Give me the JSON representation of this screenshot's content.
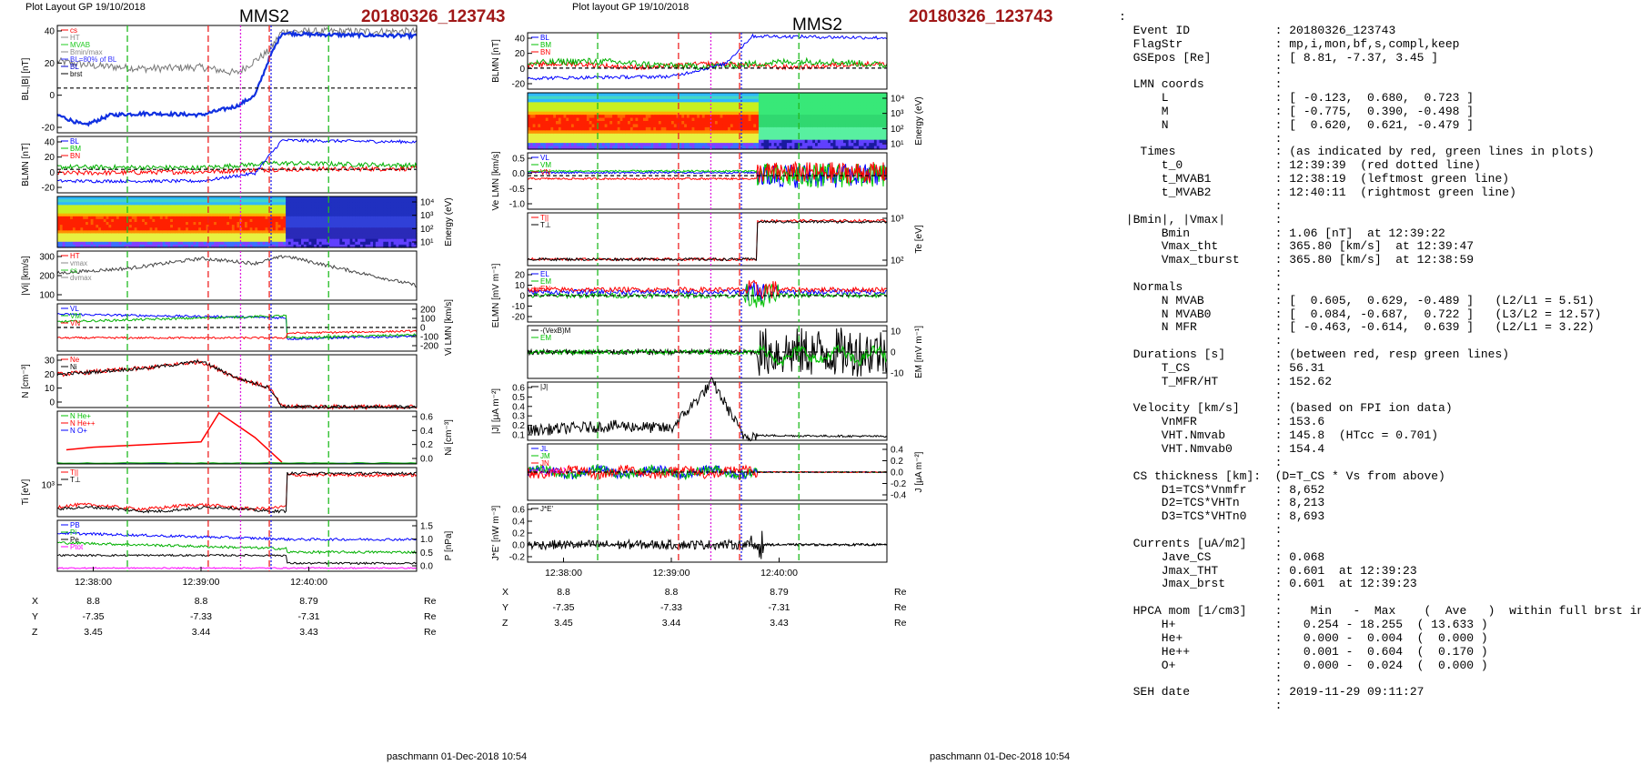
{
  "left": {
    "plot_layout": "Plot Layout GP 19/10/2018",
    "spacecraft": "MMS2",
    "event": "20180326_123743",
    "footer": "paschmann 01-Dec-2018 10:54",
    "time_ticks": [
      "12:38:00",
      "12:39:00",
      "12:40:00"
    ],
    "coords": [
      {
        "axis": "X",
        "values": [
          "8.8",
          "8.8",
          "8.79"
        ],
        "unit": "Re"
      },
      {
        "axis": "Y",
        "values": [
          "-7.35",
          "-7.33",
          "-7.31"
        ],
        "unit": "Re"
      },
      {
        "axis": "Z",
        "values": [
          "3.45",
          "3.44",
          "3.43"
        ],
        "unit": "Re"
      }
    ],
    "panels": [
      {
        "ylabel": "BL,|B| [nT]",
        "ticks": [
          "40",
          "20",
          "0",
          "-20"
        ],
        "legend": [
          "cs",
          "HT",
          "MVAB",
          "Bmin/max",
          "BL=80% of BL",
          "BL",
          "brst"
        ]
      },
      {
        "ylabel": "BLMN [nT]",
        "ticks": [
          "40",
          "20",
          "0",
          "-20"
        ],
        "legend": [
          "BL",
          "BM",
          "BN"
        ]
      },
      {
        "ylabel": "Energy (eV)",
        "ticks": [
          "10⁴",
          "10³",
          "10²",
          "10¹"
        ],
        "legend": []
      },
      {
        "ylabel": "|Vi| [km/s]",
        "ticks": [
          "300",
          "200",
          "100"
        ],
        "legend": [
          "HT",
          "vmax",
          "cs",
          "dvmax"
        ]
      },
      {
        "ylabel": "Vi LMN [km/s]",
        "ticks": [
          "200",
          "100",
          "0",
          "-100",
          "-200"
        ],
        "legend": [
          "VL",
          "VM",
          "VN"
        ]
      },
      {
        "ylabel": "N [cm⁻³]",
        "ticks": [
          "30",
          "20",
          "10",
          "0"
        ],
        "legend": [
          "Ne",
          "Ni"
        ]
      },
      {
        "ylabel": "Ni [cm⁻³]",
        "ticks": [
          "0.6",
          "0.4",
          "0.2",
          "0.0"
        ],
        "legend": [
          "N He+",
          "N He++",
          "N O+"
        ]
      },
      {
        "ylabel": "Ti [eV]",
        "ticks": [
          "10³"
        ],
        "legend": [
          "T||",
          "T⊥"
        ]
      },
      {
        "ylabel": "P [nPa]",
        "ticks": [
          "1.5",
          "1.0",
          "0.5",
          "0.0"
        ],
        "legend": [
          "PB",
          "Pi",
          "Pe",
          "Ptot"
        ]
      }
    ]
  },
  "middle": {
    "plot_layout": "Plot layout GP 19/10/2018",
    "spacecraft": "MMS2",
    "event": "20180326_123743",
    "footer": "paschmann 01-Dec-2018 10:54",
    "time_ticks": [
      "12:38:00",
      "12:39:00",
      "12:40:00"
    ],
    "coords": [
      {
        "axis": "X",
        "values": [
          "8.8",
          "8.8",
          "8.79"
        ],
        "unit": "Re"
      },
      {
        "axis": "Y",
        "values": [
          "-7.35",
          "-7.33",
          "-7.31"
        ],
        "unit": "Re"
      },
      {
        "axis": "Z",
        "values": [
          "3.45",
          "3.44",
          "3.43"
        ],
        "unit": "Re"
      }
    ],
    "panels": [
      {
        "ylabel": "BLMN [nT]",
        "ticks": [
          "40",
          "20",
          "0",
          "-20"
        ],
        "legend": [
          "BL",
          "BM",
          "BN"
        ]
      },
      {
        "ylabel": "Energy (eV)",
        "ticks": [
          "10⁴",
          "10³",
          "10²",
          "10¹"
        ],
        "legend": []
      },
      {
        "ylabel": "Ve LMN [km/s]",
        "ticks": [
          "0.5",
          "0.0",
          "-0.5",
          "-1.0"
        ],
        "legend": [
          "VL",
          "VM",
          "VN"
        ]
      },
      {
        "ylabel": "Te [eV]",
        "ticks": [
          "10³",
          "10²"
        ],
        "legend": [
          "T||",
          "T⊥"
        ]
      },
      {
        "ylabel": "ELMN [mV m⁻¹]",
        "ticks": [
          "20",
          "10",
          "0",
          "-10",
          "-20"
        ],
        "legend": [
          "EL",
          "EM",
          "EN"
        ]
      },
      {
        "ylabel": "EM [mV m⁻¹]",
        "ticks": [
          "10",
          "0",
          "-10"
        ],
        "legend": [
          "-(VexB)M",
          "EM"
        ]
      },
      {
        "ylabel": "|J| [μA m⁻²]",
        "ticks": [
          "0.6",
          "0.5",
          "0.4",
          "0.3",
          "0.2",
          "0.1"
        ],
        "legend": [
          "|J|"
        ]
      },
      {
        "ylabel": "J [μA m⁻²]",
        "ticks": [
          "0.4",
          "0.2",
          "0.0",
          "-0.2",
          "-0.4"
        ],
        "legend": [
          "JL",
          "JM",
          "JN",
          "J_maxJ"
        ]
      },
      {
        "ylabel": "J*E' [nW m⁻³]",
        "ticks": [
          "0.6",
          "0.4",
          "0.2",
          "0.0",
          "-0.2"
        ],
        "legend": [
          "J*E'"
        ]
      }
    ]
  },
  "info_text": ":\n  Event ID            : 20180326_123743\n  FlagStr             : mp,i,mon,bf,s,compl,keep\n  GSEpos [Re]         : [ 8.81, -7.37, 3.45 ]\n                      :\n  LMN coords          :\n      L               : [ -0.123,  0.680,  0.723 ]\n      M               : [ -0.775,  0.390, -0.498 ]\n      N               : [  0.620,  0.621, -0.479 ]\n                      :\n   Times              : (as indicated by red, green lines in plots)\n      t_0             : 12:39:39  (red dotted line)\n      t_MVAB1         : 12:38:19  (leftmost green line)\n      t_MVAB2         : 12:40:11  (rightmost green line)\n                      :\n |Bmin|, |Vmax|       :\n      Bmin            : 1.06 [nT]  at 12:39:22\n      Vmax_tht        : 365.80 [km/s]  at 12:39:47\n      Vmax_tburst     : 365.80 [km/s]  at 12:38:59\n                      :\n  Normals             :\n      N MVAB          : [  0.605,  0.629, -0.489 ]   (L2/L1 = 5.51)\n      N MVAB0         : [  0.084, -0.687,  0.722 ]   (L3/L2 = 12.57)\n      N MFR           : [ -0.463, -0.614,  0.639 ]   (L2/L1 = 3.22)\n                      :\n  Durations [s]       : (between red, resp green lines)\n      T_CS            : 56.31\n      T_MFR/HT        : 152.62\n                      :\n  Velocity [km/s]     : (based on FPI ion data)\n      VnMFR           : 153.6\n      VHT.Nmvab       : 145.8  (HTcc = 0.701)\n      VHT.Nmvab0      : 154.4\n                      :\n  CS thickness [km]:  (D=T_CS * Vs from above)\n      D1=TCS*Vnmfr    : 8,652\n      D2=TCS*VHTn     : 8,213\n      D3=TCS*VHTn0    : 8,693\n                      :\n  Currents [uA/m2]    :\n      Jave_CS         : 0.068\n      Jmax_THT        : 0.601  at 12:39:23\n      Jmax_brst       : 0.601  at 12:39:23\n                      :\n  HPCA mom [1/cm3]    :    Min   -  Max    (  Ave   )  within full brst int\n      H+              :   0.254 - 18.255  ( 13.633 )\n      He+             :   0.000 -  0.004  (  0.000 )\n      He++            :   0.001 -  0.604  (  0.170 )\n      O+              :   0.000 -  0.024  (  0.000 )\n                      :\n  SEH date            : 2019-11-29 09:11:27\n                      :",
  "chart_data": [
    {
      "type": "line",
      "title": "MMS2 20180326_123743",
      "x_range": [
        "12:37:40",
        "12:41:00"
      ],
      "xticks": [
        "12:38:00",
        "12:39:00",
        "12:40:00"
      ],
      "markers": {
        "red_dashed": [
          "12:39:04",
          "12:39:38"
        ],
        "red_dotted": "12:39:39",
        "green_dashed": [
          "12:38:19",
          "12:40:11"
        ],
        "magenta_dotted": "12:39:22"
      },
      "panels": [
        {
          "name": "BL,|B| [nT]",
          "ylim": [
            -30,
            42
          ],
          "series": [
            {
              "name": "BL",
              "x": [
                "12:37:40",
                "12:37:55",
                "12:38:10",
                "12:38:30",
                "12:39:00",
                "12:39:20",
                "12:39:30",
                "12:39:38",
                "12:39:45",
                "12:40:00",
                "12:41:00"
              ],
              "y": [
                -18,
                -25,
                -18,
                -17,
                -18,
                -12,
                -5,
                20,
                37,
                36,
                35
              ]
            },
            {
              "name": "|B|",
              "x": [
                "12:37:40",
                "12:38:00",
                "12:38:30",
                "12:39:00",
                "12:39:20",
                "12:39:38",
                "12:39:45"
              ],
              "y": [
                18,
                15,
                13,
                14,
                10,
                25,
                38
              ]
            }
          ]
        },
        {
          "name": "BLMN [nT]",
          "ylim": [
            -30,
            42
          ],
          "series": [
            {
              "name": "BL",
              "x": [
                "12:37:40",
                "12:39:00",
                "12:39:30",
                "12:39:45",
                "12:41:00"
              ],
              "y": [
                -15,
                -15,
                -5,
                37,
                35
              ]
            },
            {
              "name": "BM",
              "x": [
                "12:37:40",
                "12:39:00",
                "12:39:40",
                "12:41:00"
              ],
              "y": [
                3,
                2,
                8,
                5
              ]
            },
            {
              "name": "BN",
              "x": [
                "12:37:40",
                "12:39:00",
                "12:39:40",
                "12:41:00"
              ],
              "y": [
                -5,
                -3,
                0,
                1
              ]
            }
          ]
        },
        {
          "name": "|Vi| [km/s]",
          "ylim": [
            0,
            400
          ],
          "series": [
            {
              "name": "|Vi|",
              "x": [
                "12:37:40",
                "12:38:20",
                "12:39:00",
                "12:39:30",
                "12:39:47",
                "12:40:20",
                "12:41:00"
              ],
              "y": [
                220,
                260,
                340,
                300,
                360,
                250,
                120
              ]
            }
          ]
        },
        {
          "name": "N [cm⁻³]",
          "ylim": [
            0,
            32
          ],
          "series": [
            {
              "name": "Ni",
              "x": [
                "12:37:40",
                "12:38:30",
                "12:39:00",
                "12:39:20",
                "12:39:38",
                "12:39:45",
                "12:41:00"
              ],
              "y": [
                20,
                24,
                28,
                18,
                12,
                0.5,
                0.3
              ]
            }
          ]
        },
        {
          "name": "Ni [cm⁻³]",
          "ylim": [
            0,
            0.6
          ],
          "series": [
            {
              "name": "N He++",
              "x": [
                "12:37:45",
                "12:38:00",
                "12:38:20",
                "12:38:40",
                "12:39:00",
                "12:39:10",
                "12:39:30",
                "12:39:45"
              ],
              "y": [
                0.16,
                0.19,
                0.21,
                0.23,
                0.25,
                0.58,
                0.3,
                0.02
              ]
            }
          ]
        }
      ]
    },
    {
      "type": "line",
      "title": "MMS2 20180326_123743",
      "x_range": [
        "12:37:40",
        "12:41:00"
      ],
      "xticks": [
        "12:38:00",
        "12:39:00",
        "12:40:00"
      ],
      "panels": [
        {
          "name": "BLMN [nT]",
          "ylim": [
            -25,
            42
          ],
          "series": [
            {
              "name": "BL",
              "x": [
                "12:37:40",
                "12:39:00",
                "12:39:30",
                "12:39:45",
                "12:41:00"
              ],
              "y": [
                -12,
                -10,
                5,
                38,
                36
              ]
            }
          ]
        },
        {
          "name": "Te [eV]",
          "series": [
            {
              "name": "T||",
              "x": [
                "12:37:40",
                "12:39:30",
                "12:39:40",
                "12:39:45",
                "12:41:00"
              ],
              "y": [
                40,
                45,
                80,
                1200,
                1800
              ]
            }
          ]
        },
        {
          "name": "|J| [μA m⁻²]",
          "ylim": [
            0,
            0.6
          ],
          "series": [
            {
              "name": "|J|",
              "x": [
                "12:37:40",
                "12:38:30",
                "12:39:00",
                "12:39:23",
                "12:39:40",
                "12:41:00"
              ],
              "y": [
                0.1,
                0.15,
                0.12,
                0.6,
                0.05,
                0.04
              ]
            }
          ]
        }
      ]
    }
  ]
}
